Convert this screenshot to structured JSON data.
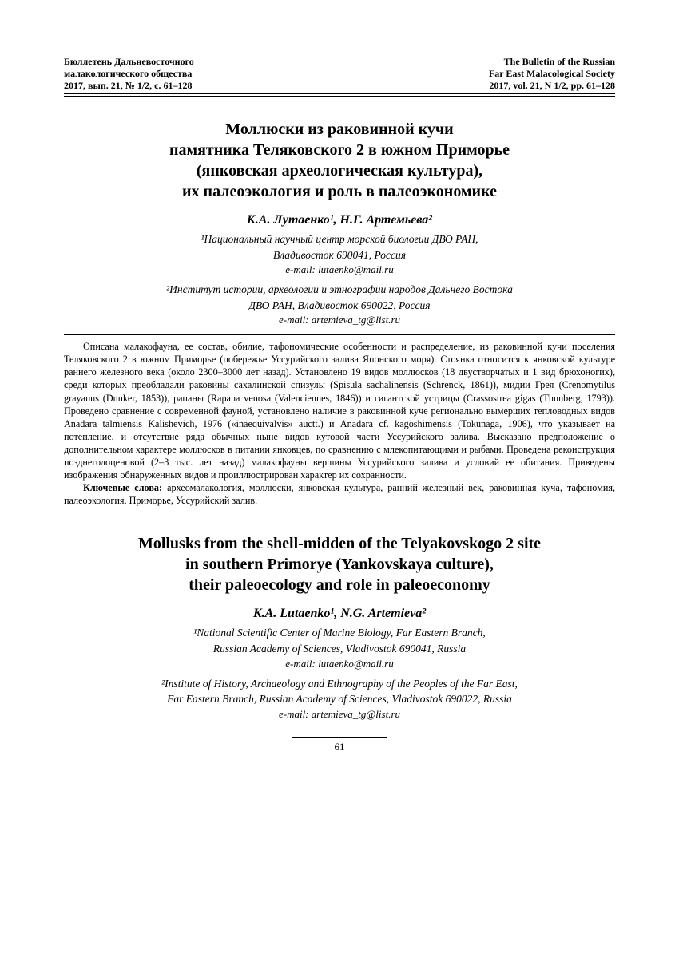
{
  "header": {
    "left_line1": "Бюллетень Дальневосточного",
    "left_line2": "малакологического общества",
    "left_line3": "2017, вып. 21, № 1/2, с. 61–128",
    "right_line1": "The Bulletin of the Russian",
    "right_line2": "Far East Malacological Society",
    "right_line3": "2017, vol. 21, N 1/2, pp. 61–128"
  },
  "russian": {
    "title_line1": "Моллюски из раковинной кучи",
    "title_line2": "памятника Теляковского 2 в южном Приморье",
    "title_line3": "(янковская археологическая культура),",
    "title_line4": "их палеоэкология и роль в палеоэкономике",
    "authors": "К.А. Лутаенко¹, Н.Г. Артемьева²",
    "affil1_line1": "¹Национальный научный центр морской биологии ДВО РАН,",
    "affil1_line2": "Владивосток 690041, Россия",
    "email1": "e-mail: lutaenko@mail.ru",
    "affil2_line1": "²Институт истории, археологии и этнографии народов Дальнего Востока",
    "affil2_line2": "ДВО РАН, Владивосток 690022, Россия",
    "email2": "e-mail: artemieva_tg@list.ru"
  },
  "abstract": {
    "body": "Описана малакофауна, ее состав, обилие, тафономические особенности и распределение, из раковинной кучи поселения Теляковского 2 в южном Приморье (побережье Уссурийского залива Японского моря). Стоянка относится к янковской культуре раннего железного века (около 2300–3000 лет назад). Установлено 19 видов моллюсков (18 двустворчатых и 1 вид брюхоногих), среди которых преобладали раковины сахалинской спизулы (Spisula sachalinensis (Schrenck, 1861)), мидии Грея (Crenomytilus grayanus (Dunker, 1853)), рапаны (Rapana venosa (Valenciennes, 1846)) и гигантской устрицы (Crassostrea gigas (Thunberg, 1793)). Проведено сравнение с современной фауной, установлено наличие в раковинной куче регионально вымерших тепловодных видов Anadara talmiensis Kalishevich, 1976 («inaequivalvis» auctt.) и Anadara cf. kagoshimensis (Tokunaga, 1906), что указывает на потепление, и отсутствие ряда обычных ныне видов кутовой части Уссурийского залива. Высказано предположение о дополнительном характере моллюсков в питании янковцев, по сравнению с млекопитающими и рыбами. Проведена реконструкция позднеголоценовой (2–3 тыс. лет назад) малакофауны вершины Уссурийского залива и условий ее обитания. Приведены изображения обнаруженных видов и проиллюстрирован характер их сохранности.",
    "keywords_label": "Ключевые слова:",
    "keywords": " археомалакология, моллюски, янковская культура, ранний железный век, раковинная куча, тафономия, палеоэкология, Приморье, Уссурийский залив."
  },
  "english": {
    "title_line1": "Mollusks from the shell-midden of the Telyakovskogo 2 site",
    "title_line2": "in southern Primorye (Yankovskaya culture),",
    "title_line3": "their paleoecology and role in paleoeconomy",
    "authors": "K.A. Lutaenko¹, N.G. Artemieva²",
    "affil1_line1": "¹National Scientific Center of Marine Biology, Far Eastern Branch,",
    "affil1_line2": "Russian Academy of Sciences, Vladivostok 690041, Russia",
    "email1": "e-mail: lutaenko@mail.ru",
    "affil2_line1": "²Institute of History, Archaeology and Ethnography of the Peoples of the Far East,",
    "affil2_line2": "Far Eastern Branch, Russian Academy of Sciences, Vladivostok 690022, Russia",
    "email2": "e-mail: artemieva_tg@list.ru"
  },
  "page_number": "61"
}
